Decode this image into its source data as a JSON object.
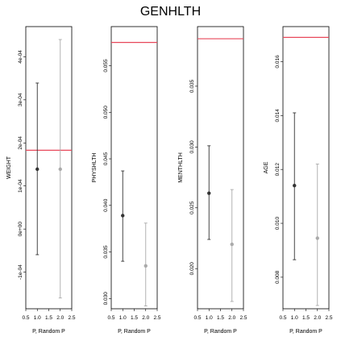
{
  "title": "GENHLTH",
  "chart_data": [
    {
      "type": "scatter",
      "ylabel": "WEIGHT",
      "xlabel": "P, Random P",
      "xlim": [
        0.5,
        2.5
      ],
      "xticks": [
        "0.5",
        "1.0",
        "1.5",
        "2.0",
        "2.5"
      ],
      "ylim": [
        -0.000185,
        0.00047
      ],
      "yticks": [
        "-1e-04",
        "0e+00",
        "1e-04",
        "2e-04",
        "3e-04",
        "4e-04"
      ],
      "yticks_values": [
        -0.0001,
        0,
        0.0001,
        0.0002,
        0.0003,
        0.0004
      ],
      "hline": 0.000183,
      "points": [
        {
          "x": 1,
          "y": 0.000139,
          "lower": -5.95e-05,
          "upper": 0.000339,
          "color": "#333333"
        },
        {
          "x": 2,
          "y": 0.000139,
          "lower": -0.00016,
          "upper": 0.00044,
          "color": "#aaaaaa"
        }
      ]
    },
    {
      "type": "scatter",
      "ylabel": "PHYSHLTH",
      "xlabel": "P, Random P",
      "xlim": [
        0.5,
        2.5
      ],
      "xticks": [
        "0.5",
        "1.0",
        "1.5",
        "2.0",
        "2.5"
      ],
      "ylim": [
        0.0289,
        0.0592
      ],
      "yticks": [
        "0.030",
        "0.035",
        "0.040",
        "0.045",
        "0.050",
        "0.055"
      ],
      "yticks_values": [
        0.03,
        0.035,
        0.04,
        0.045,
        0.05,
        0.055
      ],
      "hline": 0.0575,
      "points": [
        {
          "x": 1,
          "y": 0.0389,
          "lower": 0.034,
          "upper": 0.0437,
          "color": "#333333"
        },
        {
          "x": 2,
          "y": 0.0335,
          "lower": 0.0292,
          "upper": 0.0381,
          "color": "#aaaaaa"
        }
      ]
    },
    {
      "type": "scatter",
      "ylabel": "MENTHLTH",
      "xlabel": "P, Random P",
      "xlim": [
        0.5,
        2.5
      ],
      "xticks": [
        "0.5",
        "1.0",
        "1.5",
        "2.0",
        "2.5"
      ],
      "ylim": [
        0.0167,
        0.0399
      ],
      "yticks": [
        "0.020",
        "0.025",
        "0.030",
        "0.035"
      ],
      "yticks_values": [
        0.02,
        0.025,
        0.03,
        0.035
      ],
      "hline": 0.0389,
      "points": [
        {
          "x": 1,
          "y": 0.0262,
          "lower": 0.0224,
          "upper": 0.0301,
          "color": "#333333"
        },
        {
          "x": 2,
          "y": 0.022,
          "lower": 0.0173,
          "upper": 0.0265,
          "color": "#aaaaaa"
        }
      ]
    },
    {
      "type": "scatter",
      "ylabel": "AGE",
      "xlabel": "P, Random P",
      "xlim": [
        0.5,
        2.5
      ],
      "xticks": [
        "0.5",
        "1.0",
        "1.5",
        "2.0",
        "2.5"
      ],
      "ylim": [
        0.00683,
        0.0173
      ],
      "yticks": [
        "0.008",
        "0.010",
        "0.012",
        "0.014",
        "0.016"
      ],
      "yticks_values": [
        0.008,
        0.01,
        0.012,
        0.014,
        0.016
      ],
      "hline": 0.0169,
      "points": [
        {
          "x": 1,
          "y": 0.0114,
          "lower": 0.00865,
          "upper": 0.0141,
          "color": "#333333"
        },
        {
          "x": 2,
          "y": 0.00945,
          "lower": 0.00695,
          "upper": 0.0122,
          "color": "#aaaaaa"
        }
      ]
    }
  ]
}
